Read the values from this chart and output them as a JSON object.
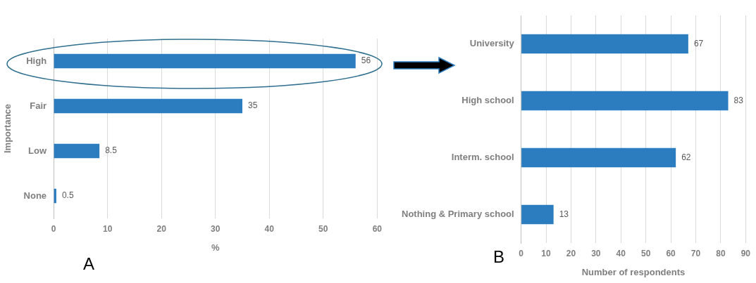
{
  "chart_data": [
    {
      "type": "bar",
      "orientation": "horizontal",
      "categories": [
        "High",
        "Fair",
        "Low",
        "None"
      ],
      "values": [
        56,
        35,
        8.5,
        0.5
      ],
      "color": "#2b7dc0",
      "xlim": [
        0,
        60
      ],
      "xticks": [
        0,
        10,
        20,
        30,
        40,
        50,
        60
      ],
      "xlabel": "%",
      "ylabel": "Importance",
      "grid": "x",
      "data_labels": true,
      "legend": false,
      "annotations": [
        "A"
      ]
    },
    {
      "type": "bar",
      "orientation": "horizontal",
      "categories": [
        "University",
        "High school",
        "Interm. school",
        "Nothing & Primary school"
      ],
      "values": [
        67,
        83,
        62,
        13
      ],
      "color": "#2b7dc0",
      "xlim": [
        0,
        90
      ],
      "xticks": [
        0,
        10,
        20,
        30,
        40,
        50,
        60,
        70,
        80,
        90
      ],
      "xlabel": "Number of respondents",
      "grid": "x",
      "data_labels": true,
      "legend": false,
      "annotations": [
        "B"
      ]
    }
  ]
}
